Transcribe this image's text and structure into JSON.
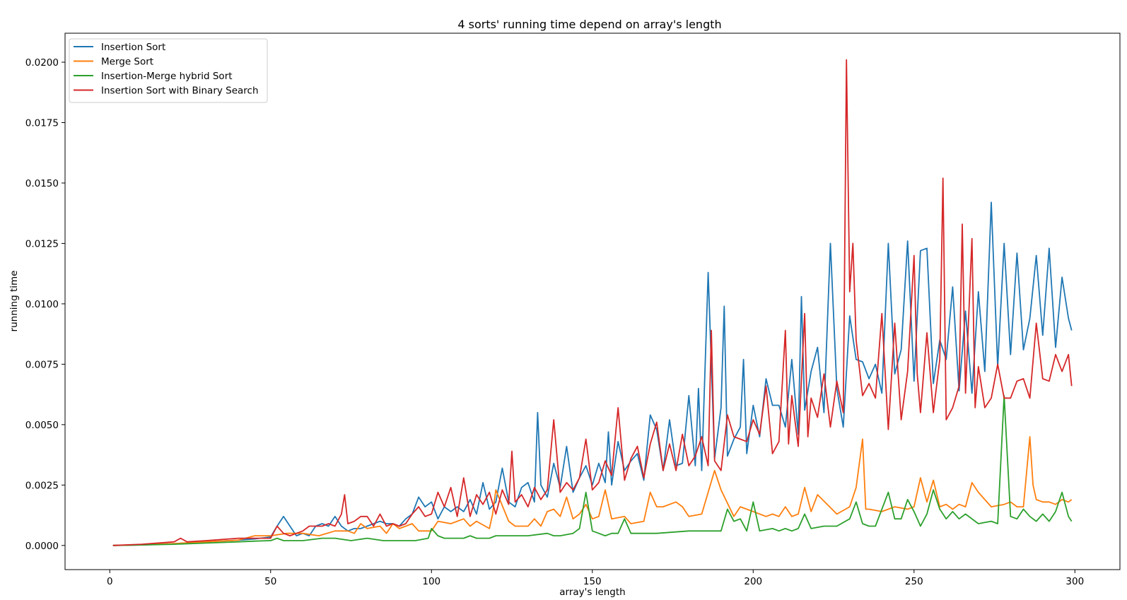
{
  "chart_data": {
    "type": "line",
    "title": "4 sorts' running time depend on array's length",
    "xlabel": "array's length",
    "ylabel": "running time",
    "xlim": [
      -13.9,
      314
    ],
    "ylim": [
      -0.001,
      0.0212
    ],
    "xticks": [
      0,
      50,
      100,
      150,
      200,
      250,
      300
    ],
    "xtick_labels": [
      "0",
      "50",
      "100",
      "150",
      "200",
      "250",
      "300"
    ],
    "yticks": [
      0,
      0.0025,
      0.005,
      0.0075,
      0.01,
      0.0125,
      0.015,
      0.0175,
      0.02
    ],
    "ytick_labels": [
      "0.0000",
      "0.0025",
      "0.0050",
      "0.0075",
      "0.0100",
      "0.0125",
      "0.0150",
      "0.0175",
      "0.0200"
    ],
    "grid": false,
    "legend_position": "top-left",
    "series": [
      {
        "name": "Insertion Sort",
        "color": "#1f77b4",
        "x": [
          1,
          10,
          20,
          30,
          40,
          45,
          50,
          52,
          54,
          56,
          58,
          60,
          62,
          64,
          66,
          68,
          70,
          72,
          74,
          76,
          78,
          80,
          82,
          84,
          86,
          88,
          90,
          92,
          94,
          96,
          98,
          100,
          102,
          104,
          106,
          108,
          110,
          112,
          114,
          116,
          118,
          120,
          122,
          124,
          126,
          128,
          130,
          132,
          133,
          134,
          136,
          138,
          140,
          142,
          144,
          146,
          148,
          150,
          152,
          154,
          155,
          156,
          158,
          160,
          162,
          164,
          166,
          168,
          170,
          172,
          174,
          176,
          178,
          180,
          182,
          183,
          184,
          186,
          188,
          190,
          191,
          192,
          194,
          196,
          197,
          198,
          200,
          202,
          204,
          206,
          208,
          210,
          212,
          214,
          215,
          216,
          218,
          220,
          222,
          224,
          226,
          228,
          230,
          232,
          234,
          236,
          238,
          240,
          242,
          244,
          246,
          248,
          250,
          252,
          254,
          256,
          258,
          260,
          262,
          264,
          266,
          268,
          270,
          272,
          274,
          276,
          278,
          280,
          282,
          284,
          286,
          288,
          290,
          292,
          294,
          296,
          298,
          299
        ],
        "y": [
          0.0,
          2e-05,
          7e-05,
          0.00015,
          0.00022,
          0.00027,
          0.00035,
          0.0008,
          0.0012,
          0.0008,
          0.0004,
          0.0005,
          0.0004,
          0.0008,
          0.0009,
          0.0008,
          0.0012,
          0.0008,
          0.0006,
          0.0007,
          0.0007,
          0.0008,
          0.0009,
          0.001,
          0.0009,
          0.0009,
          0.0008,
          0.0011,
          0.0013,
          0.002,
          0.0016,
          0.0018,
          0.0011,
          0.0016,
          0.0014,
          0.0016,
          0.0014,
          0.0019,
          0.0013,
          0.0026,
          0.0015,
          0.0018,
          0.0032,
          0.0018,
          0.0016,
          0.0024,
          0.0026,
          0.0018,
          0.0055,
          0.0025,
          0.002,
          0.0034,
          0.0024,
          0.0041,
          0.0022,
          0.0028,
          0.0033,
          0.0025,
          0.0034,
          0.0026,
          0.0047,
          0.0025,
          0.0043,
          0.0031,
          0.0035,
          0.0038,
          0.0027,
          0.0054,
          0.0048,
          0.0031,
          0.0052,
          0.0033,
          0.0034,
          0.0062,
          0.0033,
          0.0065,
          0.0031,
          0.0113,
          0.0036,
          0.0057,
          0.0099,
          0.0037,
          0.0044,
          0.0049,
          0.0077,
          0.0038,
          0.0058,
          0.0045,
          0.0069,
          0.0058,
          0.0058,
          0.0049,
          0.0077,
          0.0046,
          0.0103,
          0.0056,
          0.0072,
          0.0082,
          0.0055,
          0.0125,
          0.0065,
          0.0049,
          0.0095,
          0.0077,
          0.0076,
          0.0069,
          0.0075,
          0.0063,
          0.0125,
          0.0071,
          0.0081,
          0.0126,
          0.0068,
          0.0122,
          0.0123,
          0.0067,
          0.0085,
          0.0077,
          0.0107,
          0.0064,
          0.0097,
          0.0063,
          0.0105,
          0.0072,
          0.0142,
          0.0074,
          0.0125,
          0.0079,
          0.0121,
          0.0081,
          0.0094,
          0.012,
          0.0087,
          0.0123,
          0.0082,
          0.0111,
          0.0094,
          0.0089
        ]
      },
      {
        "name": "Merge Sort",
        "color": "#ff7f0e",
        "x": [
          1,
          10,
          20,
          30,
          40,
          45,
          50,
          55,
          60,
          65,
          70,
          72,
          74,
          76,
          78,
          80,
          84,
          86,
          88,
          90,
          92,
          94,
          96,
          100,
          102,
          106,
          110,
          112,
          114,
          118,
          119,
          120,
          124,
          126,
          130,
          132,
          134,
          136,
          138,
          140,
          142,
          144,
          146,
          148,
          150,
          152,
          154,
          156,
          160,
          162,
          166,
          168,
          170,
          172,
          176,
          178,
          180,
          184,
          186,
          188,
          190,
          194,
          196,
          200,
          204,
          206,
          208,
          210,
          212,
          214,
          216,
          218,
          220,
          226,
          230,
          232,
          234,
          235,
          236,
          240,
          244,
          248,
          250,
          252,
          254,
          256,
          258,
          260,
          262,
          264,
          266,
          268,
          270,
          274,
          278,
          280,
          282,
          284,
          286,
          287,
          288,
          290,
          292,
          294,
          296,
          298,
          299
        ],
        "y": [
          0.0,
          3e-05,
          8e-05,
          0.00015,
          0.00022,
          0.0004,
          0.0004,
          0.0005,
          0.0005,
          0.0004,
          0.0006,
          0.0006,
          0.0006,
          0.0005,
          0.0009,
          0.0007,
          0.0008,
          0.0005,
          0.0009,
          0.0007,
          0.0008,
          0.0009,
          0.0006,
          0.0006,
          0.001,
          0.0009,
          0.0011,
          0.0008,
          0.001,
          0.0007,
          0.0013,
          0.0023,
          0.001,
          0.0008,
          0.0008,
          0.0011,
          0.0008,
          0.0014,
          0.0015,
          0.0012,
          0.002,
          0.0011,
          0.0013,
          0.0017,
          0.0011,
          0.0012,
          0.0023,
          0.0011,
          0.0012,
          0.0009,
          0.001,
          0.0022,
          0.0016,
          0.0016,
          0.0018,
          0.0016,
          0.0012,
          0.0013,
          0.0022,
          0.0031,
          0.0023,
          0.0012,
          0.0016,
          0.0014,
          0.0012,
          0.0013,
          0.0012,
          0.0016,
          0.0012,
          0.0013,
          0.0024,
          0.0014,
          0.0021,
          0.0013,
          0.0016,
          0.0024,
          0.0044,
          0.0015,
          0.0015,
          0.0014,
          0.0016,
          0.0015,
          0.0016,
          0.0028,
          0.0018,
          0.0027,
          0.0016,
          0.0017,
          0.0015,
          0.0017,
          0.0016,
          0.0026,
          0.0022,
          0.0016,
          0.0017,
          0.0018,
          0.0016,
          0.0016,
          0.0045,
          0.0025,
          0.0019,
          0.0018,
          0.0018,
          0.0017,
          0.0019,
          0.0018,
          0.0019
        ]
      },
      {
        "name": "Insertion-Merge hybrid Sort",
        "color": "#2ca02c",
        "x": [
          1,
          10,
          20,
          30,
          40,
          45,
          50,
          52,
          54,
          56,
          58,
          60,
          66,
          70,
          75,
          80,
          85,
          90,
          95,
          99,
          100,
          102,
          104,
          110,
          112,
          114,
          118,
          120,
          130,
          136,
          138,
          140,
          144,
          146,
          148,
          150,
          152,
          154,
          156,
          158,
          160,
          162,
          166,
          170,
          180,
          188,
          190,
          192,
          194,
          196,
          198,
          200,
          202,
          206,
          208,
          210,
          212,
          214,
          216,
          218,
          222,
          226,
          230,
          232,
          234,
          236,
          238,
          242,
          244,
          246,
          248,
          250,
          252,
          254,
          256,
          258,
          260,
          262,
          264,
          266,
          270,
          274,
          276,
          278,
          280,
          282,
          284,
          286,
          288,
          290,
          292,
          294,
          296,
          298,
          299
        ],
        "y": [
          0.0,
          2e-05,
          5e-05,
          0.0001,
          0.00015,
          0.00018,
          0.0002,
          0.0003,
          0.0002,
          0.0002,
          0.0002,
          0.0002,
          0.0003,
          0.0003,
          0.0002,
          0.0003,
          0.0002,
          0.0002,
          0.0002,
          0.0003,
          0.0007,
          0.0004,
          0.0003,
          0.0003,
          0.0004,
          0.0003,
          0.0003,
          0.0004,
          0.0004,
          0.0005,
          0.0004,
          0.0004,
          0.0005,
          0.0007,
          0.0022,
          0.0006,
          0.0005,
          0.0004,
          0.0005,
          0.0005,
          0.0011,
          0.0005,
          0.0005,
          0.0005,
          0.0006,
          0.0006,
          0.0006,
          0.0015,
          0.001,
          0.0011,
          0.0006,
          0.0018,
          0.0006,
          0.0007,
          0.0006,
          0.0007,
          0.0006,
          0.0007,
          0.0013,
          0.0007,
          0.0008,
          0.0008,
          0.0011,
          0.0018,
          0.0009,
          0.0008,
          0.0008,
          0.0022,
          0.0011,
          0.0011,
          0.0019,
          0.0014,
          0.0008,
          0.0013,
          0.0023,
          0.0015,
          0.0011,
          0.0014,
          0.0011,
          0.0013,
          0.0009,
          0.001,
          0.0009,
          0.0062,
          0.0012,
          0.0011,
          0.0015,
          0.0012,
          0.001,
          0.0013,
          0.001,
          0.0014,
          0.0022,
          0.0012,
          0.001
        ]
      },
      {
        "name": "Insertion Sort with Binary Search",
        "color": "#d62728",
        "x": [
          1,
          10,
          20,
          22,
          24,
          30,
          40,
          45,
          50,
          52,
          54,
          56,
          58,
          60,
          62,
          64,
          66,
          68,
          70,
          72,
          73,
          74,
          76,
          78,
          80,
          82,
          84,
          86,
          88,
          90,
          92,
          94,
          96,
          98,
          100,
          102,
          104,
          106,
          108,
          110,
          112,
          114,
          116,
          118,
          120,
          122,
          124,
          125,
          126,
          128,
          130,
          132,
          134,
          136,
          138,
          140,
          142,
          144,
          146,
          148,
          150,
          152,
          154,
          156,
          158,
          160,
          162,
          164,
          166,
          168,
          170,
          172,
          174,
          176,
          178,
          180,
          182,
          184,
          186,
          187,
          188,
          190,
          192,
          194,
          196,
          198,
          200,
          202,
          204,
          206,
          208,
          210,
          211,
          212,
          214,
          216,
          217,
          218,
          220,
          222,
          224,
          226,
          228,
          229,
          230,
          231,
          232,
          234,
          236,
          238,
          240,
          242,
          244,
          246,
          248,
          250,
          251,
          252,
          254,
          256,
          258,
          259,
          260,
          262,
          264,
          265,
          266,
          268,
          269,
          270,
          272,
          274,
          276,
          278,
          280,
          282,
          284,
          286,
          288,
          290,
          292,
          294,
          296,
          298,
          299
        ],
        "y": [
          0.0,
          5e-05,
          0.00015,
          0.0003,
          0.00015,
          0.0002,
          0.0003,
          0.0003,
          0.0003,
          0.0008,
          0.0005,
          0.0004,
          0.0005,
          0.0006,
          0.0008,
          0.0008,
          0.0008,
          0.0009,
          0.0008,
          0.0013,
          0.0021,
          0.0009,
          0.001,
          0.0012,
          0.0012,
          0.0008,
          0.0013,
          0.0008,
          0.0009,
          0.0008,
          0.0009,
          0.0013,
          0.0016,
          0.0012,
          0.0013,
          0.0022,
          0.0016,
          0.0024,
          0.0012,
          0.0028,
          0.0012,
          0.0021,
          0.0017,
          0.0022,
          0.0013,
          0.0023,
          0.0017,
          0.0039,
          0.0018,
          0.0021,
          0.0016,
          0.0024,
          0.0019,
          0.0023,
          0.0052,
          0.0022,
          0.0026,
          0.0023,
          0.0028,
          0.0044,
          0.0023,
          0.0026,
          0.0035,
          0.0029,
          0.0057,
          0.0027,
          0.0036,
          0.0041,
          0.0028,
          0.0042,
          0.0051,
          0.0031,
          0.0042,
          0.0031,
          0.0046,
          0.0033,
          0.0037,
          0.0045,
          0.0033,
          0.0089,
          0.0035,
          0.0031,
          0.0054,
          0.0045,
          0.0044,
          0.0043,
          0.0052,
          0.0046,
          0.0066,
          0.0038,
          0.0043,
          0.0089,
          0.0042,
          0.0062,
          0.0041,
          0.0096,
          0.0045,
          0.0061,
          0.0053,
          0.0071,
          0.0049,
          0.0068,
          0.0055,
          0.0201,
          0.0105,
          0.0125,
          0.0085,
          0.0062,
          0.0067,
          0.0061,
          0.0096,
          0.0048,
          0.0092,
          0.0052,
          0.0072,
          0.012,
          0.0071,
          0.0055,
          0.0088,
          0.0055,
          0.0077,
          0.0152,
          0.0052,
          0.0057,
          0.0066,
          0.0133,
          0.0063,
          0.0127,
          0.0057,
          0.0074,
          0.0057,
          0.0061,
          0.0075,
          0.0061,
          0.0061,
          0.0068,
          0.0069,
          0.0061,
          0.0092,
          0.0069,
          0.0068,
          0.0079,
          0.0072,
          0.0079,
          0.0066
        ]
      }
    ]
  }
}
